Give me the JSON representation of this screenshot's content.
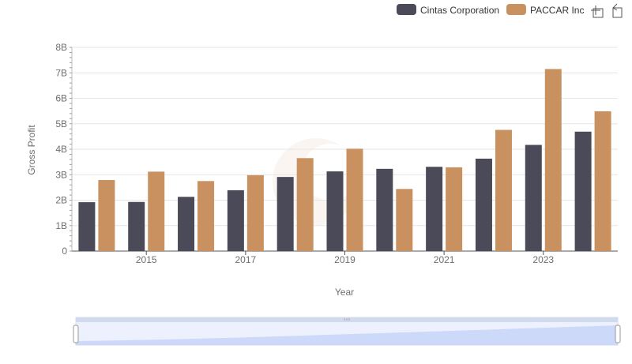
{
  "chart_data": {
    "type": "bar",
    "x": [
      2014,
      2015,
      2016,
      2017,
      2018,
      2019,
      2020,
      2021,
      2022,
      2023,
      2024
    ],
    "x_tick_labels": [
      "2015",
      "2017",
      "2019",
      "2021",
      "2023"
    ],
    "series": [
      {
        "name": "Cintas Corporation",
        "color": "#4a4a58",
        "values": [
          1.92,
          1.93,
          2.13,
          2.39,
          2.91,
          3.13,
          3.23,
          3.31,
          3.63,
          4.17,
          4.69
        ]
      },
      {
        "name": "PACCAR Inc",
        "color": "#c8915f",
        "values": [
          2.79,
          3.12,
          2.75,
          2.98,
          3.65,
          4.02,
          2.44,
          3.29,
          4.76,
          7.15,
          5.49
        ]
      }
    ],
    "xlabel": "Year",
    "ylabel": "Gross Profit",
    "ylim": [
      0,
      8
    ],
    "y_ticks": [
      0,
      1,
      2,
      3,
      4,
      5,
      6,
      7,
      8
    ],
    "y_tick_labels": [
      "0",
      "1B",
      "2B",
      "3B",
      "4B",
      "5B",
      "6B",
      "7B",
      "8B"
    ],
    "grid": true,
    "legend_position": "top-right"
  },
  "toolbar": {
    "zoom_icon": "crosshair-zoom-icon",
    "reset_icon": "reset-zoom-icon"
  },
  "slider": {
    "fill_color": "#d6e1fb",
    "handle_color": "#ffffff"
  }
}
